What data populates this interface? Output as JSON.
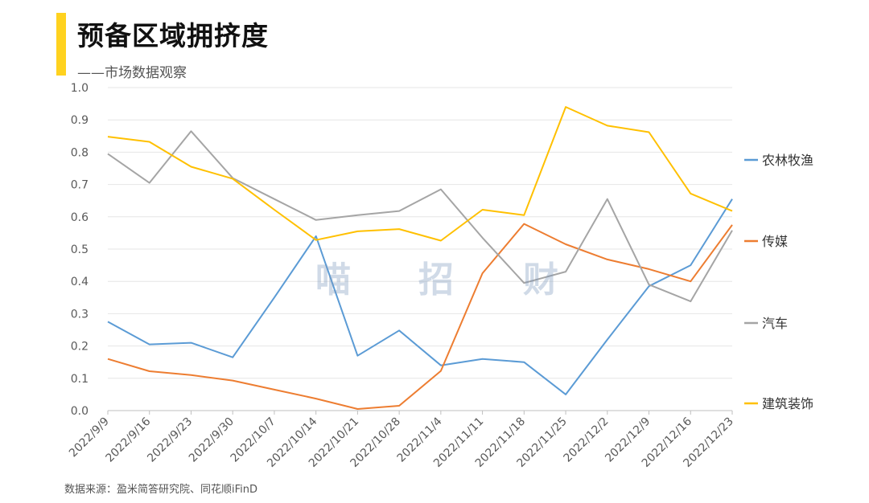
{
  "header": {
    "title": "预备区域拥挤度",
    "subtitle": "——市场数据观察"
  },
  "footer": {
    "source": "数据来源：盈米简答研究院、同花顺iFinD"
  },
  "watermark": [
    "喵",
    "招",
    "财"
  ],
  "chart_data": {
    "type": "line",
    "categories": [
      "2022/9/9",
      "2022/9/16",
      "2022/9/23",
      "2022/9/30",
      "2022/10/7",
      "2022/10/14",
      "2022/10/21",
      "2022/10/28",
      "2022/11/4",
      "2022/11/11",
      "2022/11/18",
      "2022/11/25",
      "2022/12/2",
      "2022/12/9",
      "2022/12/16",
      "2022/12/23"
    ],
    "ylim": [
      0,
      1.0
    ],
    "yticks": [
      "0.0",
      "0.1",
      "0.2",
      "0.3",
      "0.4",
      "0.5",
      "0.6",
      "0.7",
      "0.8",
      "0.9",
      "1.0"
    ],
    "grid": true,
    "legend_position": "right",
    "series": [
      {
        "name": "农林牧渔",
        "color": "#5b9bd5",
        "values": [
          0.275,
          0.205,
          0.21,
          0.165,
          0.35,
          0.54,
          0.17,
          0.248,
          0.14,
          0.16,
          0.15,
          0.05,
          0.22,
          0.385,
          0.45,
          0.655
        ]
      },
      {
        "name": "传媒",
        "color": "#ed7d31",
        "values": [
          0.16,
          0.122,
          0.11,
          0.093,
          0.065,
          0.037,
          0.005,
          0.015,
          0.123,
          0.425,
          0.578,
          0.515,
          0.468,
          0.438,
          0.4,
          0.575
        ]
      },
      {
        "name": "汽车",
        "color": "#a5a5a5",
        "values": [
          0.795,
          0.705,
          0.865,
          0.72,
          0.655,
          0.59,
          0.605,
          0.618,
          0.685,
          0.535,
          0.395,
          0.43,
          0.655,
          0.39,
          0.338,
          0.558
        ]
      },
      {
        "name": "建筑装饰",
        "color": "#ffc000",
        "values": [
          0.848,
          0.832,
          0.755,
          0.718,
          0.622,
          0.528,
          0.555,
          0.562,
          0.526,
          0.622,
          0.605,
          0.94,
          0.882,
          0.862,
          0.672,
          0.618
        ]
      }
    ]
  }
}
